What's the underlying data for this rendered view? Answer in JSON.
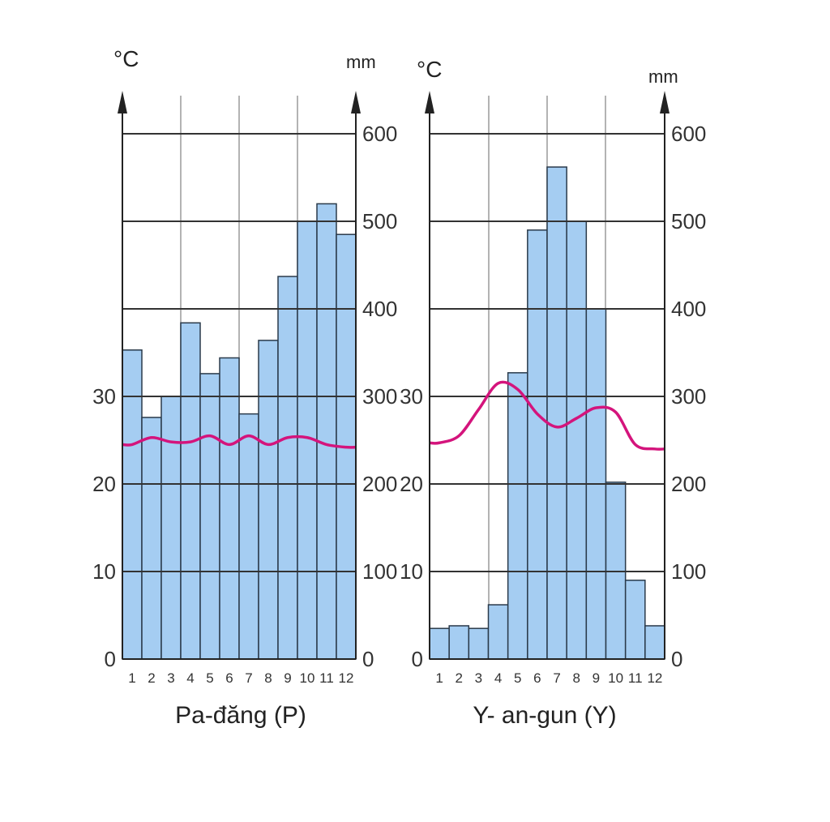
{
  "chart_data": [
    {
      "type": "bar",
      "title": "Pa-đăng (P)",
      "temp_unit": "°C",
      "rain_unit": "mm",
      "categories": [
        "1",
        "2",
        "3",
        "4",
        "5",
        "6",
        "7",
        "8",
        "9",
        "10",
        "11",
        "12"
      ],
      "series": [
        {
          "axis": "rainfall",
          "type": "bar",
          "color": "#a5cdf2",
          "values": [
            353,
            276,
            300,
            384,
            326,
            344,
            280,
            364,
            437,
            500,
            520,
            485
          ]
        },
        {
          "axis": "temperature",
          "type": "line",
          "color": "#d4147c",
          "values": [
            24.5,
            25.3,
            24.8,
            24.8,
            25.5,
            24.5,
            25.5,
            24.5,
            25.3,
            25.3,
            24.5,
            24.2
          ]
        }
      ],
      "temp_ticks": [
        "0",
        "10",
        "20",
        "30"
      ],
      "rain_ticks": [
        "0",
        "100",
        "200",
        "300",
        "400",
        "500",
        "600"
      ],
      "temp_range": [
        0,
        60
      ],
      "rain_range": [
        0,
        600
      ],
      "grid": true
    },
    {
      "type": "bar",
      "title": "Y- an-gun (Y)",
      "temp_unit": "°C",
      "rain_unit": "mm",
      "categories": [
        "1",
        "2",
        "3",
        "4",
        "5",
        "6",
        "7",
        "8",
        "9",
        "10",
        "11",
        "12"
      ],
      "series": [
        {
          "axis": "rainfall",
          "type": "bar",
          "color": "#a5cdf2",
          "values": [
            35,
            38,
            35,
            62,
            327,
            490,
            562,
            500,
            400,
            202,
            90,
            38
          ]
        },
        {
          "axis": "temperature",
          "type": "line",
          "color": "#d4147c",
          "values": [
            24.7,
            25.5,
            28.5,
            31.5,
            30.8,
            28,
            26.5,
            27.5,
            28.7,
            28.2,
            24.5,
            24
          ]
        }
      ],
      "temp_ticks": [
        "0",
        "10",
        "20",
        "30"
      ],
      "rain_ticks": [
        "0",
        "100",
        "200",
        "300",
        "400",
        "500",
        "600"
      ],
      "temp_range": [
        0,
        60
      ],
      "rain_range": [
        0,
        600
      ],
      "grid": true
    }
  ]
}
